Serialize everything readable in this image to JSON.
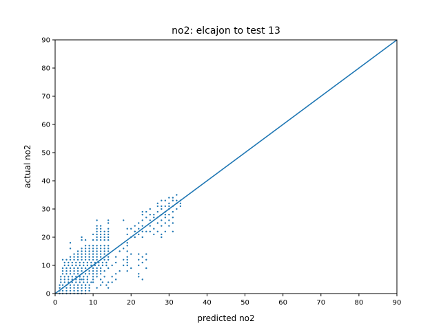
{
  "chart_data": {
    "type": "scatter",
    "title": "no2: elcajon to test 13",
    "xlabel": "predicted no2",
    "ylabel": "actual no2",
    "xlim": [
      0,
      90
    ],
    "ylim": [
      0,
      90
    ],
    "xticks": [
      0,
      10,
      20,
      30,
      40,
      50,
      60,
      70,
      80,
      90
    ],
    "yticks": [
      0,
      10,
      20,
      30,
      40,
      50,
      60,
      70,
      80,
      90
    ],
    "grid": false,
    "series_color": "#1f77b4",
    "reference_line": {
      "x": [
        0,
        90
      ],
      "y": [
        0,
        90
      ]
    },
    "points": [
      [
        1.2,
        0
      ],
      [
        2,
        0
      ],
      [
        3,
        0
      ],
      [
        4,
        0
      ],
      [
        5,
        0
      ],
      [
        6,
        0
      ],
      [
        7,
        0
      ],
      [
        8,
        0
      ],
      [
        1.2,
        1
      ],
      [
        2,
        1
      ],
      [
        3,
        1
      ],
      [
        4,
        1
      ],
      [
        5,
        1
      ],
      [
        6,
        1
      ],
      [
        7,
        1
      ],
      [
        8,
        1
      ],
      [
        9,
        1
      ],
      [
        1.2,
        2
      ],
      [
        2,
        2
      ],
      [
        3,
        2
      ],
      [
        4,
        2
      ],
      [
        5,
        2
      ],
      [
        6,
        2
      ],
      [
        7,
        2
      ],
      [
        8,
        2
      ],
      [
        9,
        2
      ],
      [
        1.2,
        3
      ],
      [
        2,
        3
      ],
      [
        3,
        3
      ],
      [
        4,
        3
      ],
      [
        5,
        3
      ],
      [
        6,
        3
      ],
      [
        7,
        3
      ],
      [
        8,
        3
      ],
      [
        9,
        3
      ],
      [
        1.5,
        4
      ],
      [
        2.5,
        4
      ],
      [
        3.5,
        4
      ],
      [
        4.5,
        4
      ],
      [
        5.5,
        4
      ],
      [
        6.5,
        4
      ],
      [
        7.5,
        4
      ],
      [
        8.5,
        4
      ],
      [
        9.5,
        4
      ],
      [
        1.5,
        5
      ],
      [
        2.5,
        5
      ],
      [
        3.5,
        5
      ],
      [
        4.5,
        5
      ],
      [
        5.5,
        5
      ],
      [
        6.5,
        5
      ],
      [
        7.5,
        5
      ],
      [
        8.5,
        5
      ],
      [
        10,
        5
      ],
      [
        1.5,
        6
      ],
      [
        2.5,
        6
      ],
      [
        3.5,
        6
      ],
      [
        4.5,
        6
      ],
      [
        5.5,
        6
      ],
      [
        6.5,
        6
      ],
      [
        7.5,
        6
      ],
      [
        8.5,
        6
      ],
      [
        10,
        6
      ],
      [
        11,
        6
      ],
      [
        2,
        7
      ],
      [
        3,
        7
      ],
      [
        4,
        7
      ],
      [
        5,
        7
      ],
      [
        6,
        7
      ],
      [
        7,
        7
      ],
      [
        8,
        7
      ],
      [
        9,
        7
      ],
      [
        10,
        7
      ],
      [
        11,
        7
      ],
      [
        2,
        8
      ],
      [
        3,
        8
      ],
      [
        4,
        8
      ],
      [
        5,
        8
      ],
      [
        6,
        8
      ],
      [
        7,
        8
      ],
      [
        8,
        8
      ],
      [
        9,
        8
      ],
      [
        10,
        8
      ],
      [
        11,
        8
      ],
      [
        12,
        8
      ],
      [
        2,
        9
      ],
      [
        3,
        9
      ],
      [
        4,
        9
      ],
      [
        5,
        9
      ],
      [
        6,
        9
      ],
      [
        7,
        9
      ],
      [
        8,
        9
      ],
      [
        9,
        9
      ],
      [
        10,
        9
      ],
      [
        11,
        9
      ],
      [
        12,
        9
      ],
      [
        2.5,
        10
      ],
      [
        3.5,
        10
      ],
      [
        4.5,
        10
      ],
      [
        5.5,
        10
      ],
      [
        6.5,
        10
      ],
      [
        7.5,
        10
      ],
      [
        8.5,
        10
      ],
      [
        9.5,
        10
      ],
      [
        10.5,
        10
      ],
      [
        11.5,
        10
      ],
      [
        12.5,
        10
      ],
      [
        13.5,
        10
      ],
      [
        2.5,
        11
      ],
      [
        3.5,
        11
      ],
      [
        4.5,
        11
      ],
      [
        5.5,
        11
      ],
      [
        6.5,
        11
      ],
      [
        7.5,
        11
      ],
      [
        8.5,
        11
      ],
      [
        9.5,
        11
      ],
      [
        10.5,
        11
      ],
      [
        11.5,
        11
      ],
      [
        12.5,
        11
      ],
      [
        13.5,
        11
      ],
      [
        2,
        12
      ],
      [
        3,
        12
      ],
      [
        4,
        12
      ],
      [
        5,
        12
      ],
      [
        6,
        12
      ],
      [
        7,
        12
      ],
      [
        8,
        12
      ],
      [
        9,
        12
      ],
      [
        10,
        12
      ],
      [
        11,
        12
      ],
      [
        12,
        12
      ],
      [
        13,
        12
      ],
      [
        14,
        12
      ],
      [
        4,
        13
      ],
      [
        5,
        13
      ],
      [
        6,
        13
      ],
      [
        7,
        13
      ],
      [
        8,
        13
      ],
      [
        9,
        13
      ],
      [
        10,
        13
      ],
      [
        11,
        13
      ],
      [
        12,
        13
      ],
      [
        13,
        13
      ],
      [
        14,
        13
      ],
      [
        5,
        14
      ],
      [
        6,
        14
      ],
      [
        7,
        14
      ],
      [
        8,
        14
      ],
      [
        9,
        14
      ],
      [
        10,
        14
      ],
      [
        11,
        14
      ],
      [
        12,
        14
      ],
      [
        13,
        14
      ],
      [
        14,
        14
      ],
      [
        6,
        15
      ],
      [
        7,
        15
      ],
      [
        8,
        15
      ],
      [
        9,
        15
      ],
      [
        10,
        15
      ],
      [
        11,
        15
      ],
      [
        12,
        15
      ],
      [
        13,
        15
      ],
      [
        14,
        15
      ],
      [
        4,
        16
      ],
      [
        7,
        16
      ],
      [
        8,
        16
      ],
      [
        9,
        16
      ],
      [
        10,
        16
      ],
      [
        11,
        16
      ],
      [
        12,
        16
      ],
      [
        13,
        16
      ],
      [
        14,
        16
      ],
      [
        4,
        18
      ],
      [
        8,
        17
      ],
      [
        9,
        17
      ],
      [
        10,
        17
      ],
      [
        11,
        17
      ],
      [
        12,
        17
      ],
      [
        13,
        17
      ],
      [
        14,
        17
      ],
      [
        7,
        19
      ],
      [
        8,
        19
      ],
      [
        10,
        19
      ],
      [
        11,
        19
      ],
      [
        12,
        19
      ],
      [
        13,
        19
      ],
      [
        14,
        19
      ],
      [
        7,
        20
      ],
      [
        11,
        20
      ],
      [
        12,
        20
      ],
      [
        13,
        20
      ],
      [
        14,
        20
      ],
      [
        10,
        21
      ],
      [
        11,
        21
      ],
      [
        12,
        21
      ],
      [
        13,
        21
      ],
      [
        14,
        21
      ],
      [
        11,
        22
      ],
      [
        12,
        22
      ],
      [
        13,
        22
      ],
      [
        14,
        22
      ],
      [
        11,
        23
      ],
      [
        12,
        23
      ],
      [
        14,
        23
      ],
      [
        11,
        24
      ],
      [
        12,
        24
      ],
      [
        14,
        25
      ],
      [
        11,
        26
      ],
      [
        14,
        26
      ],
      [
        6.5,
        6
      ],
      [
        7,
        5
      ],
      [
        8,
        3
      ],
      [
        9,
        1
      ],
      [
        10,
        4
      ],
      [
        11,
        2
      ],
      [
        12,
        3
      ],
      [
        13,
        6
      ],
      [
        12,
        5
      ],
      [
        12.5,
        4
      ],
      [
        13.5,
        3
      ],
      [
        14,
        4
      ],
      [
        15,
        6
      ],
      [
        16,
        5
      ],
      [
        17,
        8
      ],
      [
        18,
        10
      ],
      [
        18,
        12
      ],
      [
        19,
        15
      ],
      [
        19,
        17
      ],
      [
        12,
        7
      ],
      [
        13,
        8
      ],
      [
        14,
        9
      ],
      [
        15,
        10
      ],
      [
        16,
        11
      ],
      [
        16,
        13
      ],
      [
        17,
        15
      ],
      [
        18,
        16
      ],
      [
        19,
        18
      ],
      [
        14,
        2
      ],
      [
        15,
        4
      ],
      [
        16,
        7
      ],
      [
        18,
        26
      ],
      [
        19,
        23
      ],
      [
        19,
        21
      ],
      [
        20,
        20
      ],
      [
        20,
        23
      ],
      [
        21,
        22
      ],
      [
        19,
        13
      ],
      [
        19,
        12
      ],
      [
        19,
        11
      ],
      [
        19,
        10
      ],
      [
        20,
        9
      ],
      [
        19,
        8
      ],
      [
        20,
        14
      ],
      [
        21,
        20
      ],
      [
        21,
        22
      ],
      [
        21,
        24
      ],
      [
        22,
        21
      ],
      [
        22,
        23
      ],
      [
        22,
        25
      ],
      [
        23,
        20
      ],
      [
        23,
        22
      ],
      [
        23,
        24
      ],
      [
        23,
        26
      ],
      [
        22,
        14
      ],
      [
        22,
        12
      ],
      [
        23,
        11
      ],
      [
        22,
        7
      ],
      [
        22,
        6
      ],
      [
        23,
        5
      ],
      [
        23,
        13
      ],
      [
        22,
        10
      ],
      [
        24,
        12
      ],
      [
        24,
        14
      ],
      [
        24,
        9
      ],
      [
        23,
        28
      ],
      [
        23,
        29
      ],
      [
        24,
        27
      ],
      [
        24,
        29
      ],
      [
        25,
        28
      ],
      [
        25,
        26
      ],
      [
        25,
        24
      ],
      [
        24,
        22
      ],
      [
        25,
        22
      ],
      [
        26,
        23
      ],
      [
        26,
        21
      ],
      [
        27,
        22
      ],
      [
        25,
        30
      ],
      [
        26,
        28
      ],
      [
        26,
        27
      ],
      [
        27,
        29
      ],
      [
        27,
        27
      ],
      [
        28,
        26
      ],
      [
        28,
        28
      ],
      [
        28,
        30
      ],
      [
        29,
        29
      ],
      [
        29,
        27
      ],
      [
        27,
        25
      ],
      [
        28,
        24
      ],
      [
        29,
        22
      ],
      [
        30,
        24
      ],
      [
        31,
        22
      ],
      [
        31,
        25
      ],
      [
        30,
        26
      ],
      [
        31,
        27
      ],
      [
        28,
        31
      ],
      [
        29,
        31
      ],
      [
        30,
        32
      ],
      [
        30,
        30
      ],
      [
        31,
        31
      ],
      [
        31,
        29
      ],
      [
        32,
        30
      ],
      [
        32,
        32
      ],
      [
        33,
        31
      ],
      [
        33,
        33
      ],
      [
        29,
        33
      ],
      [
        30,
        34
      ],
      [
        31,
        34
      ],
      [
        32,
        35
      ],
      [
        32,
        33
      ],
      [
        33,
        32
      ],
      [
        31,
        33
      ],
      [
        30,
        31
      ],
      [
        29,
        28
      ],
      [
        30,
        28
      ],
      [
        28,
        21
      ],
      [
        28,
        20
      ],
      [
        29,
        25
      ],
      [
        27,
        32
      ],
      [
        27,
        31
      ],
      [
        28,
        33
      ]
    ]
  }
}
